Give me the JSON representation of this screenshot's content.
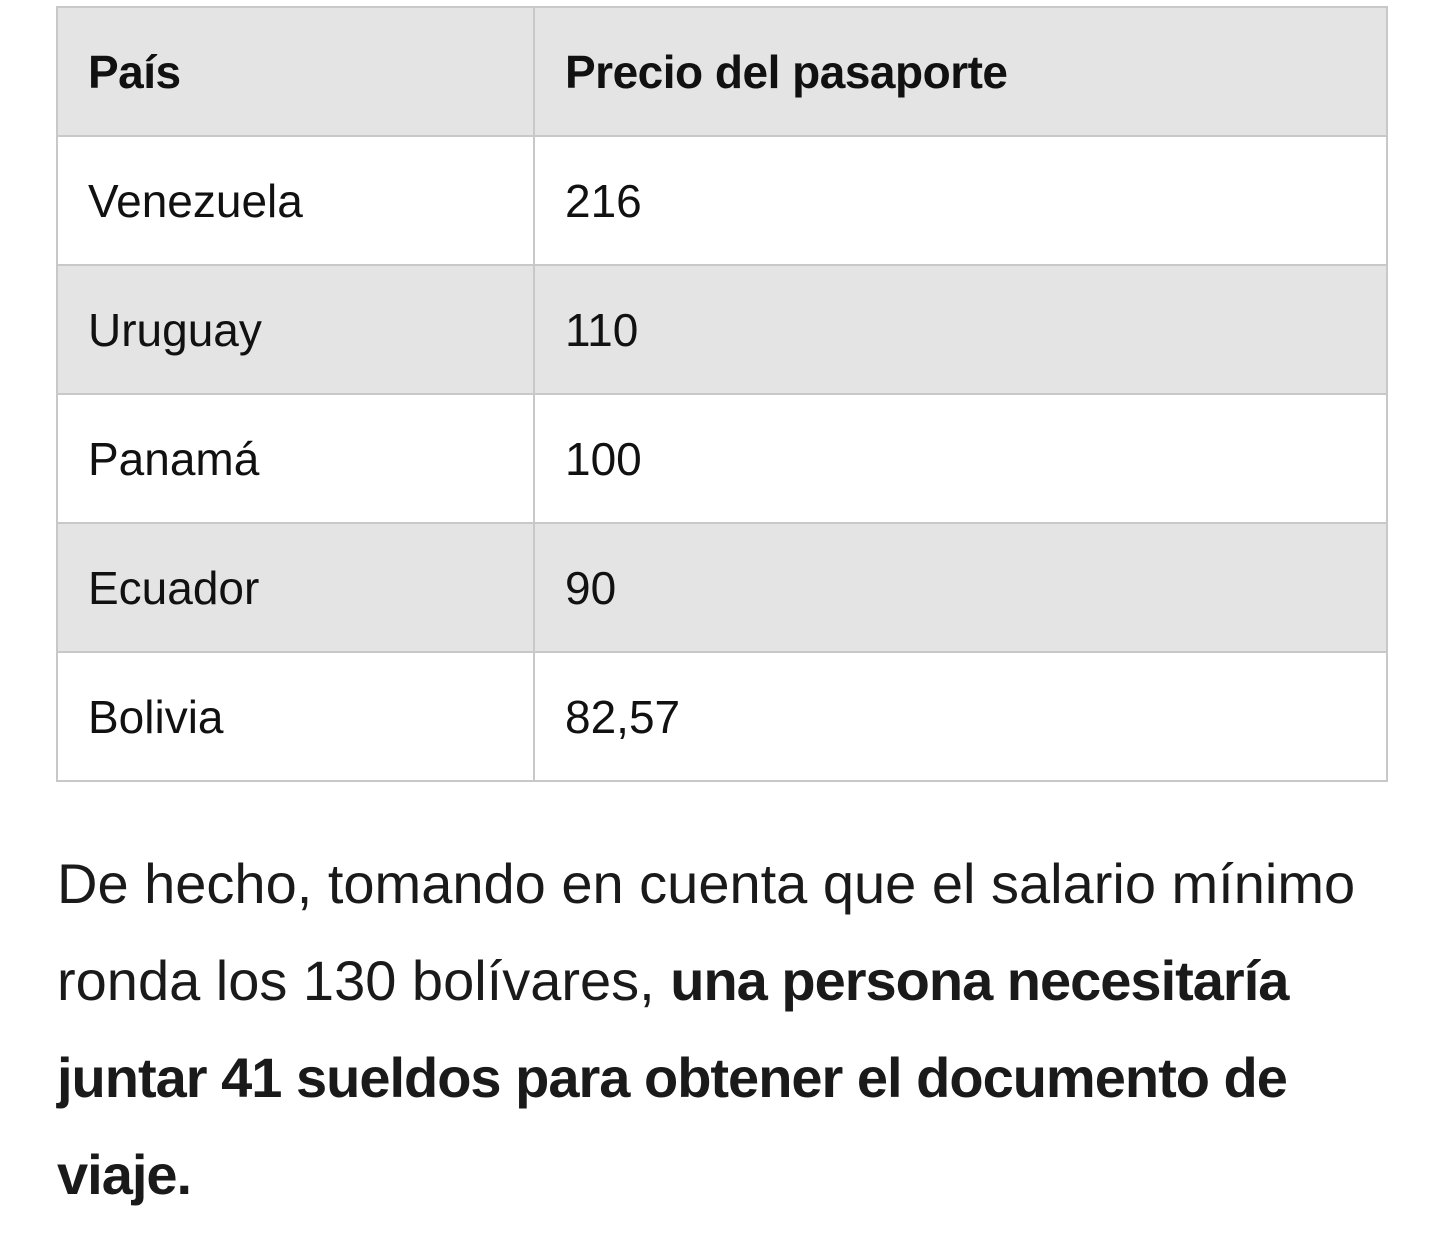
{
  "table": {
    "headers": [
      "País",
      "Precio del pasaporte"
    ],
    "rows": [
      [
        "Venezuela",
        "216"
      ],
      [
        "Uruguay",
        "110"
      ],
      [
        "Panamá",
        "100"
      ],
      [
        "Ecuador",
        "90"
      ],
      [
        "Bolivia",
        "82,57"
      ]
    ]
  },
  "paragraph": {
    "normal_text": "De hecho, tomando en cuenta que el salario mínimo ronda los 130 bolívares, ",
    "bold_text": "una persona necesitaría juntar 41 sueldos para obtener el documento de viaje."
  }
}
